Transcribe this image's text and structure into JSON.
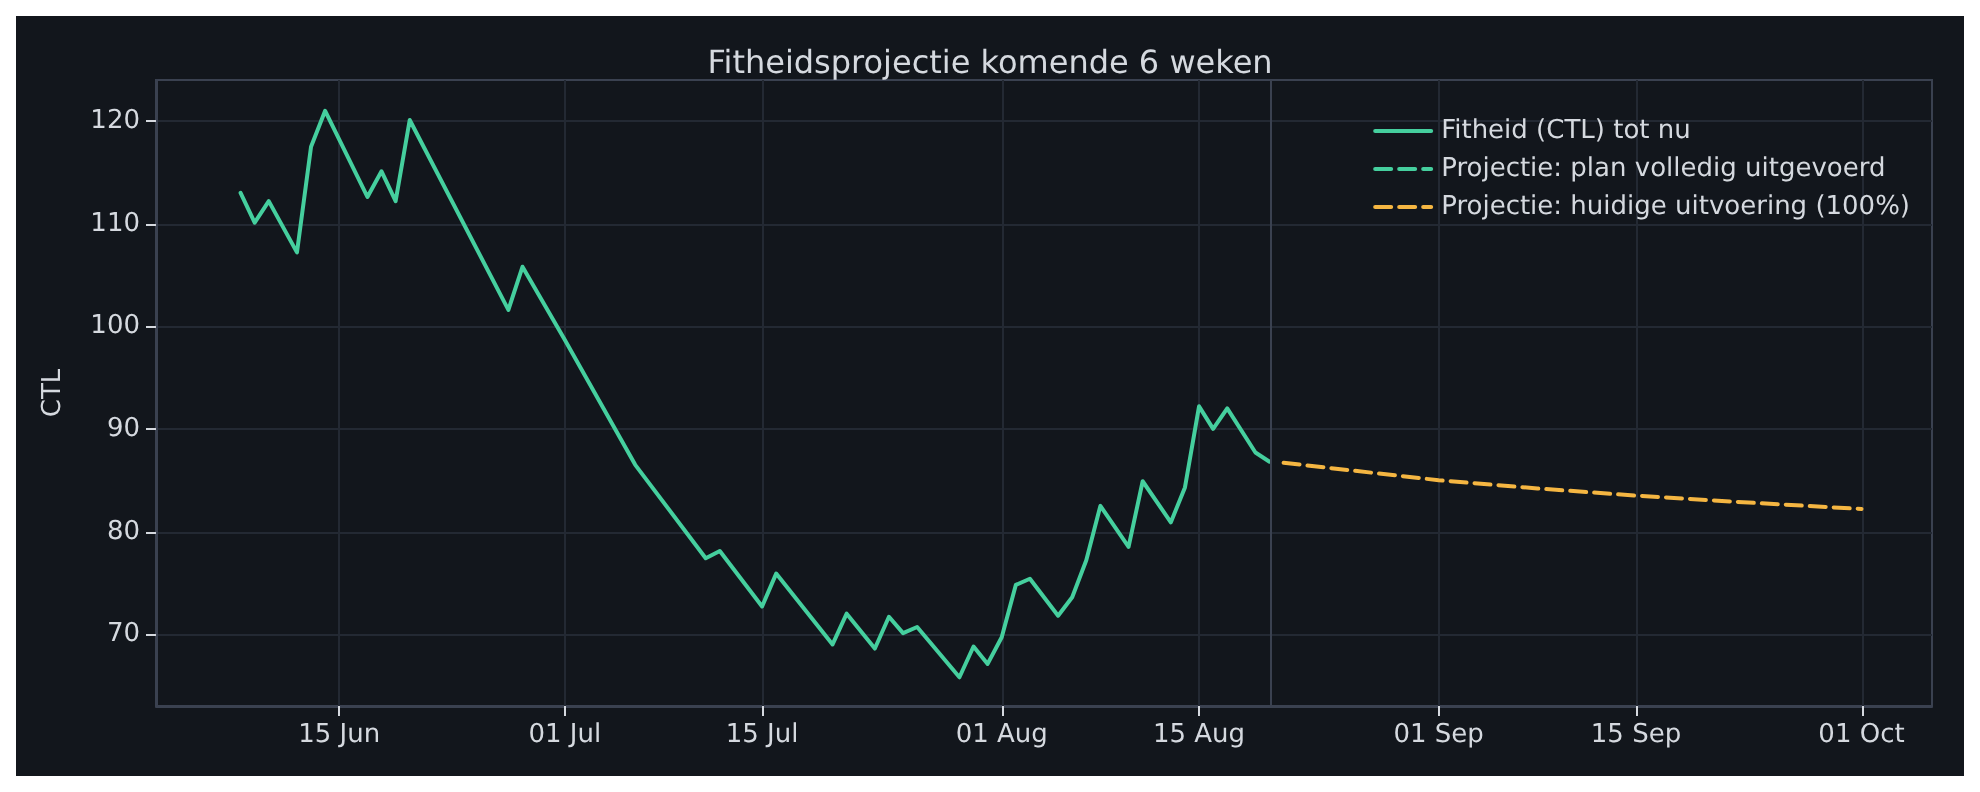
{
  "chart_data": {
    "type": "line",
    "title": "Fitheidsprojectie komende 6 weken",
    "ylabel": "CTL",
    "xlim": [
      "--06-02",
      "--10-06"
    ],
    "ylim": [
      63,
      124
    ],
    "xticks": [
      {
        "value": "--06-15",
        "label": "15 Jun"
      },
      {
        "value": "--07-01",
        "label": "01 Jul"
      },
      {
        "value": "--07-15",
        "label": "15 Jul"
      },
      {
        "value": "--08-01",
        "label": "01 Aug"
      },
      {
        "value": "--08-15",
        "label": "15 Aug"
      },
      {
        "value": "--09-01",
        "label": "01 Sep"
      },
      {
        "value": "--09-15",
        "label": "15 Sep"
      },
      {
        "value": "--10-01",
        "label": "01 Oct"
      }
    ],
    "yticks": [
      70,
      80,
      90,
      100,
      110,
      120
    ],
    "grid": true,
    "legend": "top right",
    "marker": "none",
    "ref_lines": [
      {
        "axis": "x",
        "value": "--08-20",
        "color": "#3a4150"
      }
    ],
    "series": [
      {
        "name": "Fitheid (CTL) tot nu",
        "color": "#45cf9e",
        "line_style": "solid",
        "x": [
          "--06-08",
          "--06-09",
          "--06-10",
          "--06-12",
          "--06-13",
          "--06-14",
          "--06-17",
          "--06-18",
          "--06-19",
          "--06-20",
          "--06-27",
          "--06-28",
          "--07-01",
          "--07-06",
          "--07-11",
          "--07-12",
          "--07-15",
          "--07-16",
          "--07-20",
          "--07-21",
          "--07-23",
          "--07-24",
          "--07-25",
          "--07-26",
          "--07-29",
          "--07-30",
          "--07-31",
          "--08-01",
          "--08-02",
          "--08-03",
          "--08-05",
          "--08-06",
          "--08-07",
          "--08-08",
          "--08-10",
          "--08-11",
          "--08-13",
          "--08-14",
          "--08-15",
          "--08-16",
          "--08-17",
          "--08-19",
          "--08-20"
        ],
        "values": [
          113.0,
          110.1,
          112.2,
          107.2,
          117.5,
          121.0,
          112.6,
          115.1,
          112.2,
          120.1,
          101.6,
          105.8,
          98.7,
          86.5,
          77.4,
          78.1,
          72.7,
          75.9,
          69.0,
          72.0,
          68.6,
          71.7,
          70.1,
          70.7,
          65.8,
          68.8,
          67.1,
          69.7,
          74.8,
          75.4,
          71.8,
          73.6,
          77.2,
          82.5,
          78.5,
          84.9,
          80.9,
          84.3,
          92.2,
          90.0,
          92.0,
          87.7,
          86.8
        ]
      },
      {
        "name": "Projectie: plan volledig uitgevoerd",
        "color": "#45cf9e",
        "line_style": "dashed"
      },
      {
        "name": "Projectie: huidige uitvoering (100%)",
        "color": "#f5b642",
        "line_style": "dashed",
        "x": [
          "--08-21",
          "--09-01",
          "--09-08",
          "--09-15",
          "--09-22",
          "--10-01"
        ],
        "values": [
          86.7,
          85.0,
          84.2,
          83.5,
          82.9,
          82.2
        ]
      }
    ]
  }
}
